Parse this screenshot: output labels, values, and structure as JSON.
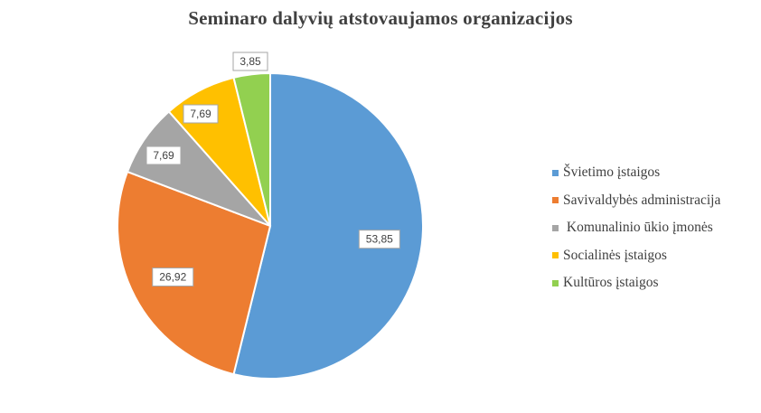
{
  "chart_data": {
    "type": "pie",
    "title": "Seminaro dalyvių atstovaujamos organizacijos",
    "categories": [
      "Švietimo įstaigos",
      "Savivaldybės administracija",
      " Komunalinio ūkio įmonės",
      "Socialinės įstaigos",
      "Kultūros įstaigos"
    ],
    "values": [
      53.85,
      26.92,
      7.69,
      7.69,
      3.85
    ],
    "data_labels": [
      "53,85",
      "26,92",
      "7,69",
      "7,69",
      "3,85"
    ],
    "colors": [
      "#5b9bd5",
      "#ed7d31",
      "#a5a5a5",
      "#ffc000",
      "#92d050"
    ],
    "legend_position": "right",
    "start_angle_deg": 0,
    "direction": "clockwise"
  }
}
